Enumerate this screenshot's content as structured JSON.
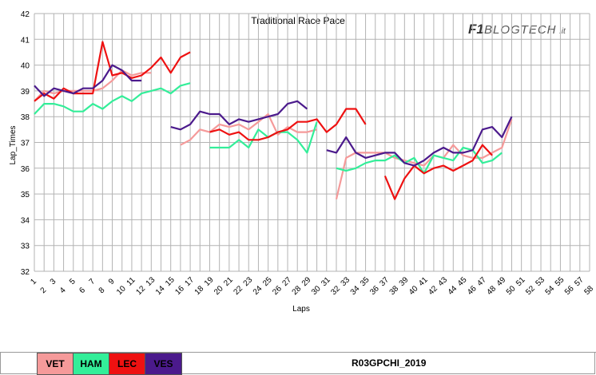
{
  "chart_data": {
    "type": "line",
    "title": "Traditional Race Pace",
    "xlabel": "Laps",
    "ylabel": "Lap_Times",
    "ylim": [
      32,
      42
    ],
    "xlim": [
      1,
      58
    ],
    "yticks": [
      "32",
      "33",
      "34",
      "35",
      "36",
      "37",
      "38",
      "39",
      "40",
      "41",
      "42"
    ],
    "xticks": [
      "1",
      "2",
      "3",
      "4",
      "5",
      "6",
      "7",
      "8",
      "9",
      "10",
      "11",
      "12",
      "13",
      "14",
      "15",
      "16",
      "17",
      "18",
      "19",
      "20",
      "21",
      "22",
      "23",
      "24",
      "25",
      "26",
      "27",
      "28",
      "29",
      "30",
      "31",
      "32",
      "33",
      "34",
      "35",
      "36",
      "37",
      "38",
      "39",
      "40",
      "41",
      "42",
      "43",
      "44",
      "45",
      "46",
      "47",
      "48",
      "49",
      "50",
      "51",
      "52",
      "53",
      "54",
      "55",
      "56",
      "57",
      "58"
    ],
    "grid": true,
    "series": [
      {
        "name": "VET",
        "color": "#f59a9a",
        "segments": [
          [
            [
              1,
              38.6
            ],
            [
              2,
              39.0
            ],
            [
              3,
              38.9
            ],
            [
              4,
              39.0
            ],
            [
              5,
              39.0
            ],
            [
              6,
              39.0
            ],
            [
              7,
              39.0
            ],
            [
              8,
              39.1
            ],
            [
              9,
              39.4
            ],
            [
              10,
              39.8
            ],
            [
              11,
              39.6
            ],
            [
              12,
              39.7
            ],
            [
              13,
              39.7
            ]
          ],
          [
            [
              16,
              36.9
            ],
            [
              17,
              37.1
            ],
            [
              18,
              37.5
            ],
            [
              19,
              37.4
            ],
            [
              20,
              37.7
            ],
            [
              21,
              37.6
            ],
            [
              22,
              37.7
            ],
            [
              23,
              37.5
            ],
            [
              24,
              37.8
            ],
            [
              25,
              38.1
            ],
            [
              26,
              37.3
            ],
            [
              27,
              37.6
            ],
            [
              28,
              37.4
            ],
            [
              29,
              37.4
            ],
            [
              30,
              37.5
            ]
          ],
          [
            [
              32,
              34.8
            ],
            [
              33,
              36.4
            ],
            [
              34,
              36.6
            ],
            [
              35,
              36.6
            ],
            [
              36,
              36.6
            ],
            [
              37,
              36.6
            ],
            [
              38,
              36.4
            ],
            [
              39,
              36.3
            ],
            [
              40,
              36.2
            ],
            [
              41,
              36.1
            ],
            [
              42,
              36.5
            ],
            [
              43,
              36.4
            ],
            [
              44,
              36.9
            ],
            [
              45,
              36.5
            ],
            [
              46,
              36.4
            ],
            [
              47,
              36.4
            ],
            [
              48,
              36.6
            ],
            [
              49,
              36.8
            ],
            [
              50,
              37.9
            ]
          ]
        ]
      },
      {
        "name": "HAM",
        "color": "#33ee99",
        "segments": [
          [
            [
              1,
              38.1
            ],
            [
              2,
              38.5
            ],
            [
              3,
              38.5
            ],
            [
              4,
              38.4
            ],
            [
              5,
              38.2
            ],
            [
              6,
              38.2
            ],
            [
              7,
              38.5
            ],
            [
              8,
              38.3
            ],
            [
              9,
              38.6
            ],
            [
              10,
              38.8
            ],
            [
              11,
              38.6
            ],
            [
              12,
              38.9
            ],
            [
              13,
              39.0
            ],
            [
              14,
              39.1
            ],
            [
              15,
              38.9
            ],
            [
              16,
              39.2
            ],
            [
              17,
              39.3
            ]
          ],
          [
            [
              19,
              36.8
            ],
            [
              20,
              36.8
            ],
            [
              21,
              36.8
            ],
            [
              22,
              37.1
            ],
            [
              23,
              36.8
            ],
            [
              24,
              37.5
            ],
            [
              25,
              37.2
            ],
            [
              26,
              37.4
            ],
            [
              27,
              37.4
            ],
            [
              28,
              37.1
            ],
            [
              29,
              36.6
            ],
            [
              30,
              37.8
            ]
          ],
          [
            [
              32,
              36.0
            ],
            [
              33,
              35.9
            ],
            [
              34,
              36.0
            ],
            [
              35,
              36.2
            ],
            [
              36,
              36.3
            ],
            [
              37,
              36.3
            ],
            [
              38,
              36.5
            ],
            [
              39,
              36.2
            ],
            [
              40,
              36.4
            ],
            [
              41,
              35.8
            ],
            [
              42,
              36.5
            ],
            [
              43,
              36.4
            ],
            [
              44,
              36.3
            ],
            [
              45,
              36.8
            ],
            [
              46,
              36.7
            ],
            [
              47,
              36.2
            ],
            [
              48,
              36.3
            ],
            [
              49,
              36.6
            ]
          ]
        ]
      },
      {
        "name": "LEC",
        "color": "#ee1111",
        "segments": [
          [
            [
              1,
              38.6
            ],
            [
              2,
              38.9
            ],
            [
              3,
              38.7
            ],
            [
              4,
              39.1
            ],
            [
              5,
              38.9
            ],
            [
              6,
              38.9
            ],
            [
              7,
              38.9
            ],
            [
              8,
              40.9
            ],
            [
              9,
              39.6
            ],
            [
              10,
              39.7
            ],
            [
              11,
              39.5
            ],
            [
              12,
              39.6
            ],
            [
              13,
              39.9
            ],
            [
              14,
              40.3
            ],
            [
              15,
              39.7
            ],
            [
              16,
              40.3
            ],
            [
              17,
              40.5
            ]
          ],
          [
            [
              19,
              37.4
            ],
            [
              20,
              37.5
            ],
            [
              21,
              37.3
            ],
            [
              22,
              37.4
            ],
            [
              23,
              37.1
            ],
            [
              24,
              37.1
            ],
            [
              25,
              37.2
            ],
            [
              26,
              37.4
            ],
            [
              27,
              37.5
            ],
            [
              28,
              37.8
            ],
            [
              29,
              37.8
            ],
            [
              30,
              37.9
            ],
            [
              31,
              37.4
            ],
            [
              32,
              37.7
            ],
            [
              33,
              38.3
            ],
            [
              34,
              38.3
            ],
            [
              35,
              37.7
            ]
          ],
          [
            [
              37,
              35.7
            ],
            [
              38,
              34.8
            ],
            [
              39,
              35.6
            ],
            [
              40,
              36.1
            ],
            [
              41,
              35.8
            ],
            [
              42,
              36.0
            ],
            [
              43,
              36.1
            ],
            [
              44,
              35.9
            ],
            [
              45,
              36.1
            ],
            [
              46,
              36.3
            ],
            [
              47,
              36.9
            ],
            [
              48,
              36.5
            ]
          ]
        ]
      },
      {
        "name": "VES",
        "color": "#4b1a8c",
        "segments": [
          [
            [
              1,
              39.2
            ],
            [
              2,
              38.8
            ],
            [
              3,
              39.1
            ],
            [
              4,
              39.0
            ],
            [
              5,
              38.9
            ],
            [
              6,
              39.1
            ],
            [
              7,
              39.1
            ],
            [
              8,
              39.4
            ],
            [
              9,
              40.0
            ],
            [
              10,
              39.8
            ],
            [
              11,
              39.4
            ],
            [
              12,
              39.4
            ]
          ],
          [
            [
              15,
              37.6
            ],
            [
              16,
              37.5
            ],
            [
              17,
              37.7
            ],
            [
              18,
              38.2
            ],
            [
              19,
              38.1
            ],
            [
              20,
              38.1
            ],
            [
              21,
              37.7
            ],
            [
              22,
              37.9
            ],
            [
              23,
              37.8
            ],
            [
              24,
              37.9
            ],
            [
              25,
              38.0
            ],
            [
              26,
              38.1
            ],
            [
              27,
              38.5
            ],
            [
              28,
              38.6
            ],
            [
              29,
              38.3
            ]
          ],
          [
            [
              31,
              36.7
            ],
            [
              32,
              36.6
            ],
            [
              33,
              37.2
            ],
            [
              34,
              36.6
            ],
            [
              35,
              36.4
            ],
            [
              36,
              36.5
            ],
            [
              37,
              36.6
            ],
            [
              38,
              36.6
            ],
            [
              39,
              36.2
            ],
            [
              40,
              36.1
            ],
            [
              41,
              36.3
            ],
            [
              42,
              36.6
            ],
            [
              43,
              36.8
            ],
            [
              44,
              36.6
            ],
            [
              45,
              36.6
            ],
            [
              46,
              36.7
            ],
            [
              47,
              37.5
            ],
            [
              48,
              37.6
            ],
            [
              49,
              37.2
            ],
            [
              50,
              38.0
            ]
          ]
        ]
      }
    ]
  },
  "logo": {
    "f1": "F1",
    "name": "BLOGTECH",
    "suffix": ".it"
  },
  "legend": [
    {
      "label": "VET",
      "color": "#f59a9a"
    },
    {
      "label": "HAM",
      "color": "#33ee99"
    },
    {
      "label": "LEC",
      "color": "#ee1111"
    },
    {
      "label": "VES",
      "color": "#4b1a8c"
    }
  ],
  "footer_code": "R03GPCHI_2019"
}
